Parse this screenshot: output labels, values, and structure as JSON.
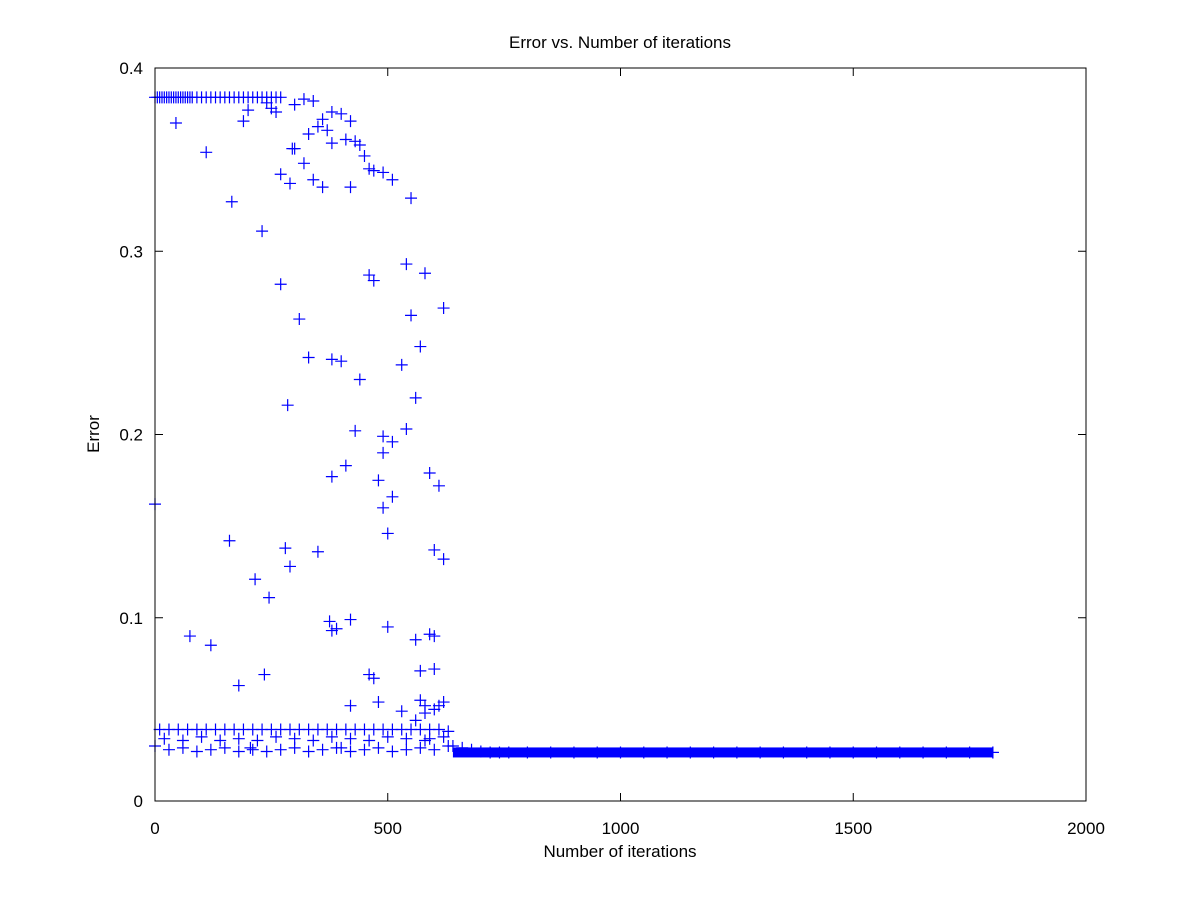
{
  "chart_data": {
    "type": "scatter",
    "title": "Error vs. Number of iterations",
    "xlabel": "Number of iterations",
    "ylabel": "Error",
    "xlim": [
      0,
      2000
    ],
    "ylim": [
      0,
      0.4
    ],
    "xticks": [
      0,
      500,
      1000,
      1500,
      2000
    ],
    "xtick_labels": [
      "0",
      "500",
      "1000",
      "1500",
      "2000"
    ],
    "yticks": [
      0,
      0.1,
      0.2,
      0.3,
      0.4
    ],
    "ytick_labels": [
      "0",
      "0.1",
      "0.2",
      "0.3",
      "0.4"
    ],
    "grid": false,
    "legend": "none",
    "marker": "plus",
    "marker_color": "#0000ff",
    "series": [
      {
        "x": [
          0,
          5,
          10,
          15,
          20,
          25,
          30,
          35,
          40,
          45,
          50,
          55,
          60,
          65,
          70,
          75,
          80,
          90,
          100,
          110,
          120,
          130,
          140,
          150,
          160,
          170,
          180,
          190,
          200,
          210,
          220,
          230,
          240,
          250,
          260,
          270,
          250,
          300,
          320,
          340,
          360,
          380,
          400,
          420,
          440,
          240,
          260,
          200,
          190,
          300,
          330,
          350,
          370,
          410,
          430,
          450,
          45,
          110,
          165,
          230,
          270,
          290,
          360,
          380,
          420,
          460,
          470,
          490,
          510,
          550,
          270,
          340,
          320,
          295,
          310,
          330,
          285,
          380,
          400,
          380,
          430,
          460,
          470,
          480,
          490,
          500,
          510,
          540,
          560,
          570,
          540,
          580,
          600,
          620,
          0,
          160,
          280,
          290,
          350,
          120,
          75,
          215,
          245,
          180,
          235,
          205,
          390,
          410,
          420,
          440,
          490,
          510,
          530,
          550,
          590,
          600,
          375,
          380,
          400,
          460,
          420,
          470,
          480,
          490,
          500,
          530,
          560,
          570,
          580,
          590,
          600,
          610,
          620,
          560,
          570,
          580,
          590,
          600,
          610,
          620,
          10,
          30,
          50,
          70,
          90,
          110,
          130,
          150,
          170,
          190,
          210,
          230,
          250,
          270,
          290,
          310,
          330,
          350,
          370,
          390,
          410,
          430,
          450,
          470,
          490,
          510,
          530,
          550,
          570,
          590,
          610,
          630,
          20,
          60,
          100,
          140,
          180,
          220,
          260,
          300,
          340,
          380,
          420,
          460,
          500,
          540,
          580,
          620,
          0,
          30,
          60,
          90,
          120,
          150,
          180,
          210,
          240,
          270,
          300,
          330,
          360,
          390,
          420,
          450,
          480,
          510,
          540,
          570,
          600,
          630,
          640,
          660,
          680,
          700,
          720,
          740,
          760,
          800,
          850,
          900,
          950,
          1000,
          1050,
          1100,
          1150,
          1200,
          1250,
          1300,
          1350,
          1400,
          1450,
          1500,
          1550,
          1600,
          1650,
          1700,
          1750,
          1800
        ],
        "y": [
          0.384,
          0.384,
          0.384,
          0.384,
          0.384,
          0.384,
          0.384,
          0.384,
          0.384,
          0.384,
          0.384,
          0.384,
          0.384,
          0.384,
          0.384,
          0.384,
          0.384,
          0.384,
          0.384,
          0.384,
          0.384,
          0.384,
          0.384,
          0.384,
          0.384,
          0.384,
          0.384,
          0.384,
          0.384,
          0.384,
          0.384,
          0.384,
          0.384,
          0.384,
          0.384,
          0.384,
          0.378,
          0.38,
          0.383,
          0.382,
          0.372,
          0.376,
          0.375,
          0.371,
          0.358,
          0.381,
          0.376,
          0.377,
          0.371,
          0.356,
          0.364,
          0.368,
          0.366,
          0.361,
          0.36,
          0.352,
          0.37,
          0.354,
          0.327,
          0.311,
          0.342,
          0.337,
          0.335,
          0.359,
          0.335,
          0.345,
          0.344,
          0.343,
          0.339,
          0.329,
          0.282,
          0.339,
          0.348,
          0.356,
          0.263,
          0.242,
          0.216,
          0.241,
          0.24,
          0.177,
          0.202,
          0.287,
          0.284,
          0.175,
          0.16,
          0.146,
          0.166,
          0.203,
          0.22,
          0.248,
          0.293,
          0.288,
          0.09,
          0.269,
          0.162,
          0.142,
          0.138,
          0.128,
          0.136,
          0.085,
          0.09,
          0.121,
          0.111,
          0.063,
          0.069,
          0.029,
          0.094,
          0.183,
          0.099,
          0.23,
          0.19,
          0.196,
          0.238,
          0.265,
          0.179,
          0.137,
          0.098,
          0.093,
          0.029,
          0.069,
          0.052,
          0.067,
          0.054,
          0.199,
          0.095,
          0.049,
          0.088,
          0.071,
          0.052,
          0.091,
          0.072,
          0.172,
          0.132,
          0.044,
          0.055,
          0.048,
          0.034,
          0.05,
          0.052,
          0.054,
          0.039,
          0.039,
          0.039,
          0.039,
          0.039,
          0.039,
          0.039,
          0.039,
          0.039,
          0.039,
          0.039,
          0.039,
          0.039,
          0.039,
          0.039,
          0.039,
          0.039,
          0.039,
          0.039,
          0.039,
          0.039,
          0.039,
          0.039,
          0.039,
          0.039,
          0.039,
          0.039,
          0.039,
          0.039,
          0.039,
          0.039,
          0.038,
          0.034,
          0.033,
          0.035,
          0.033,
          0.034,
          0.033,
          0.035,
          0.034,
          0.033,
          0.035,
          0.034,
          0.033,
          0.035,
          0.034,
          0.033,
          0.035,
          0.03,
          0.028,
          0.029,
          0.027,
          0.028,
          0.029,
          0.027,
          0.028,
          0.027,
          0.028,
          0.029,
          0.027,
          0.028,
          0.029,
          0.027,
          0.028,
          0.029,
          0.027,
          0.028,
          0.029,
          0.028,
          0.03,
          0.03,
          0.029,
          0.028,
          0.027,
          0.0265,
          0.0265,
          0.0265,
          0.0265,
          0.0265,
          0.0265,
          0.0265,
          0.0265,
          0.0265,
          0.0265,
          0.0265,
          0.0265,
          0.0265,
          0.0265,
          0.0265,
          0.0265,
          0.0265,
          0.0265,
          0.0265,
          0.0265,
          0.0265,
          0.0265,
          0.0265,
          0.0265
        ]
      }
    ],
    "dense_segment": {
      "x_start": 640,
      "x_end": 1800,
      "y_plateau": 0.0265,
      "note": "markers at every iteration form a solid band"
    }
  }
}
